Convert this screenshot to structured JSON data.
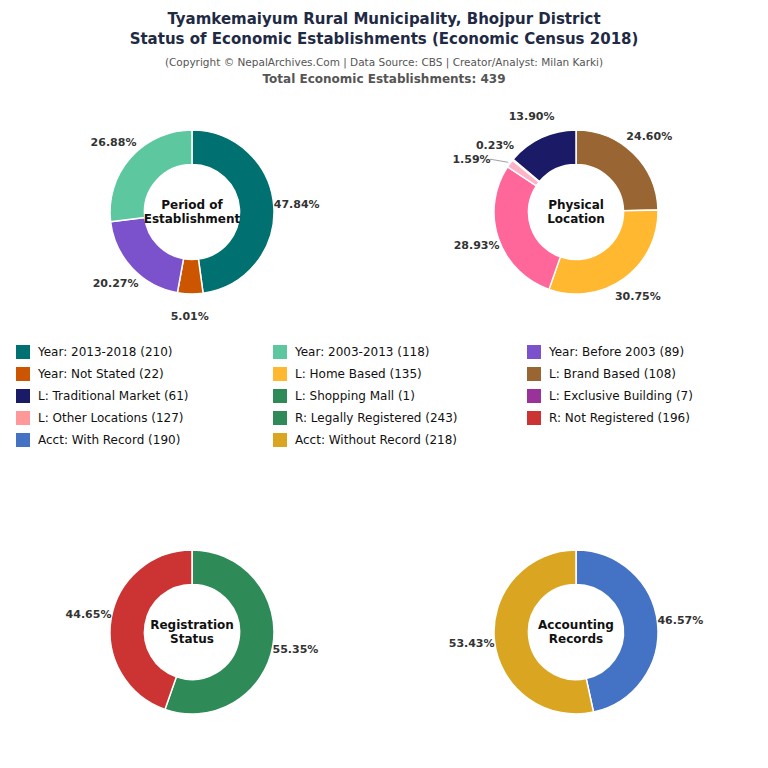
{
  "title": [
    "Tyamkemaiyum Rural Municipality, Bhojpur District",
    "Status of Economic Establishments (Economic Census 2018)"
  ],
  "subtitle": [
    "(Copyright © NepalArchives.Com | Data Source: CBS | Creator/Analyst: Milan Karki)",
    "Total Economic Establishments: 439"
  ],
  "chart_data": [
    {
      "type": "pie",
      "title": "Period of\nEstablishment",
      "values": [
        47.84,
        5.01,
        20.27,
        26.88
      ],
      "value_labels": [
        "47.84%",
        "5.01%",
        "20.27%",
        "26.88%"
      ],
      "colors": [
        "#007070",
        "#CC5500",
        "#7B52CC",
        "#5DC8A0"
      ]
    },
    {
      "type": "pie",
      "title": "Physical\nLocation",
      "values": [
        24.6,
        30.75,
        28.93,
        1.59,
        0.23,
        13.9
      ],
      "value_labels": [
        "24.60%",
        "30.75%",
        "28.93%",
        "1.59%",
        "0.23%",
        "13.90%"
      ],
      "colors": [
        "#996633",
        "#FFB830",
        "#FF6699",
        "#FFB3C6",
        "#006600",
        "#1A1A66"
      ]
    },
    {
      "type": "pie",
      "title": "Registration\nStatus",
      "values": [
        55.35,
        44.65
      ],
      "value_labels": [
        "55.35%",
        "44.65%"
      ],
      "colors": [
        "#2E8B57",
        "#CC3333"
      ]
    },
    {
      "type": "pie",
      "title": "Accounting\nRecords",
      "values": [
        46.57,
        53.43
      ],
      "value_labels": [
        "46.57%",
        "53.43%"
      ],
      "colors": [
        "#4472C4",
        "#DAA520"
      ]
    },
    {
      "type": "legend",
      "series": [
        {
          "name": "Year: 2013-2018 (210)",
          "color": "#007070"
        },
        {
          "name": "Year: Not Stated (22)",
          "color": "#CC5500"
        },
        {
          "name": "L: Traditional Market (61)",
          "color": "#1A1A66"
        },
        {
          "name": "L: Other Locations (127)",
          "color": "#FF9999"
        },
        {
          "name": "Acct: With Record (190)",
          "color": "#4472C4"
        },
        {
          "name": "Year: 2003-2013 (118)",
          "color": "#5DC8A0"
        },
        {
          "name": "L: Home Based (135)",
          "color": "#FFB830"
        },
        {
          "name": "L: Shopping Mall (1)",
          "color": "#2E8B57"
        },
        {
          "name": "R: Legally Registered (243)",
          "color": "#2E8B57"
        },
        {
          "name": "Acct: Without Record (218)",
          "color": "#DAA520"
        },
        {
          "name": "Year: Before 2003 (89)",
          "color": "#7B52CC"
        },
        {
          "name": "L: Brand Based (108)",
          "color": "#996633"
        },
        {
          "name": "L: Exclusive Building (7)",
          "color": "#993399"
        },
        {
          "name": "R: Not Registered (196)",
          "color": "#CC3333"
        }
      ]
    }
  ]
}
